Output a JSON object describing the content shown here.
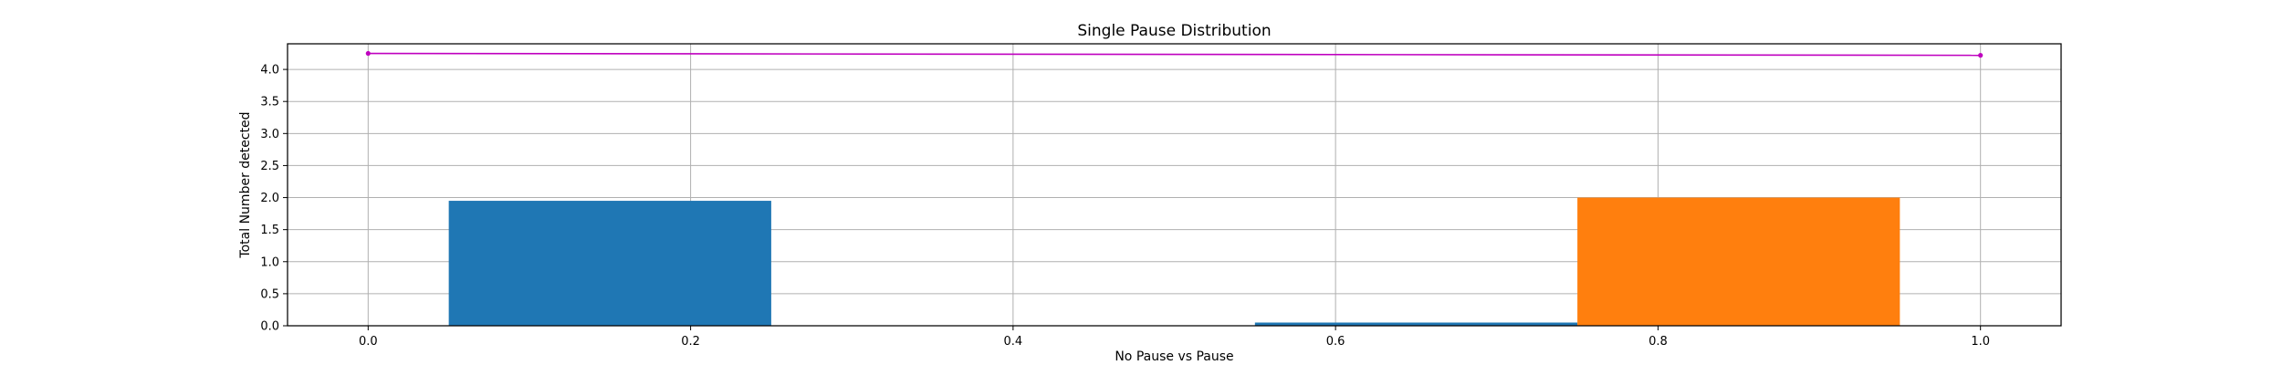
{
  "chart_data": {
    "type": "bar",
    "title": "Single Pause Distribution",
    "xlabel": "No Pause vs Pause",
    "ylabel": "Total Number detected",
    "xlim": [
      -0.05,
      1.05
    ],
    "ylim": [
      0,
      4.4
    ],
    "x_ticks": [
      0.0,
      0.2,
      0.4,
      0.6,
      0.8,
      1.0
    ],
    "x_tick_labels": [
      "0.0",
      "0.2",
      "0.4",
      "0.6",
      "0.8",
      "1.0"
    ],
    "y_ticks": [
      0.0,
      0.5,
      1.0,
      1.5,
      2.0,
      2.5,
      3.0,
      3.5,
      4.0
    ],
    "y_tick_labels": [
      "0.0",
      "0.5",
      "1.0",
      "1.5",
      "2.0",
      "2.5",
      "3.0",
      "3.5",
      "4.0"
    ],
    "grid": true,
    "bars": [
      {
        "x_start": 0.05,
        "x_end": 0.25,
        "value": 1.95,
        "color": "#1f77b4"
      },
      {
        "x_start": 0.55,
        "x_end": 0.75,
        "value": 0.05,
        "color": "#1f77b4"
      },
      {
        "x_start": 0.75,
        "x_end": 0.95,
        "value": 2.0,
        "color": "#ff7f0e"
      }
    ],
    "line": {
      "x": [
        0.0,
        1.0
      ],
      "y": [
        4.25,
        4.22
      ],
      "color": "#bf00bf"
    }
  }
}
